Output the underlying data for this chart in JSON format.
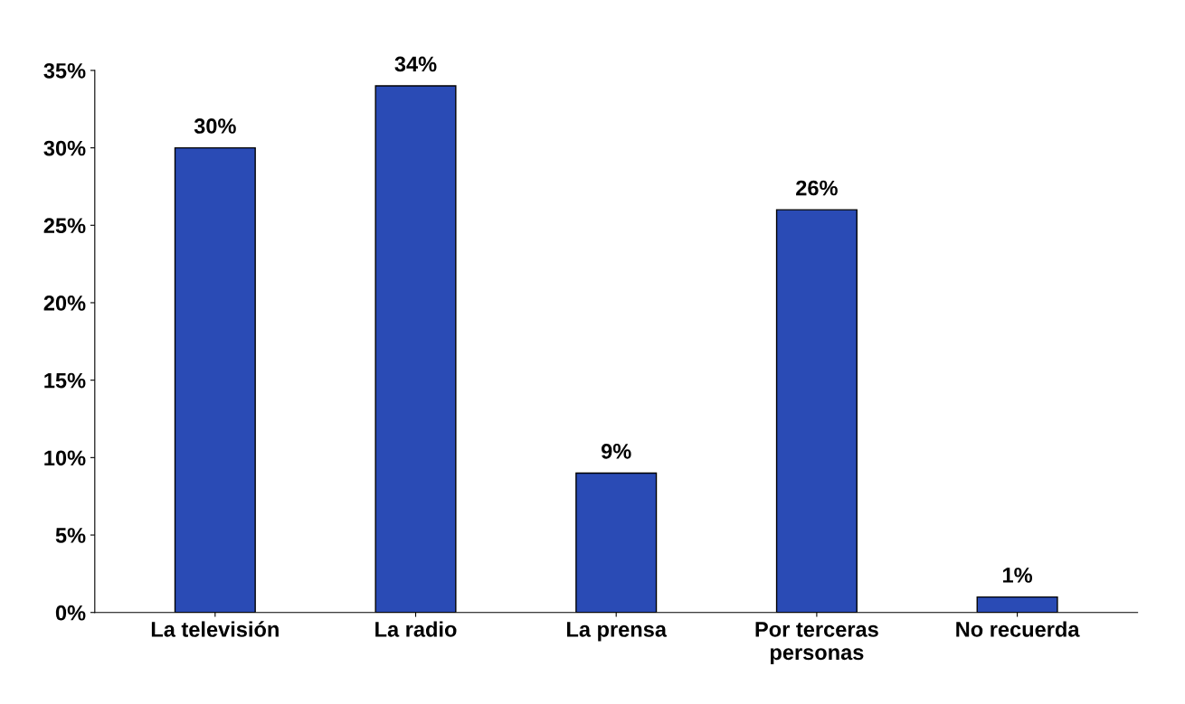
{
  "chart_data": {
    "type": "bar",
    "categories": [
      "La televisión",
      "La radio",
      "La prensa",
      "Por terceras\npersonas",
      "No recuerda"
    ],
    "values": [
      30,
      34,
      9,
      26,
      1
    ],
    "value_labels": [
      "30%",
      "34%",
      "9%",
      "26%",
      "1%"
    ],
    "color": "#2a4bb5",
    "ylim": [
      0,
      35
    ],
    "yticks": [
      {
        "value": 0,
        "label": "0%"
      },
      {
        "value": 5,
        "label": "5%"
      },
      {
        "value": 10,
        "label": "10%"
      },
      {
        "value": 15,
        "label": "15%"
      },
      {
        "value": 20,
        "label": "20%"
      },
      {
        "value": 25,
        "label": "25%"
      },
      {
        "value": 30,
        "label": "30%"
      },
      {
        "value": 35,
        "label": "35%"
      }
    ],
    "grid": false,
    "legend": false
  }
}
